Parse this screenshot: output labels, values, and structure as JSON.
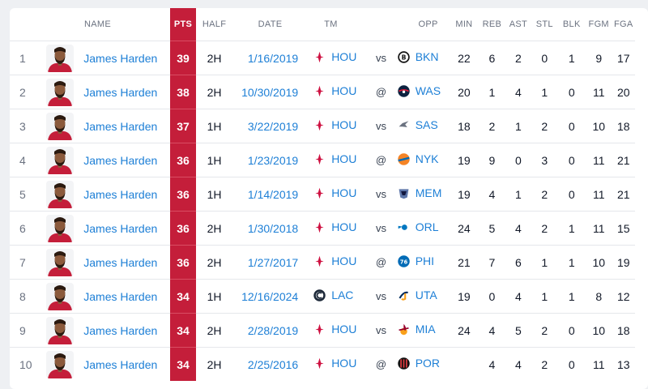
{
  "columns": {
    "name": "NAME",
    "pts": "PTS",
    "half": "HALF",
    "date": "DATE",
    "tm": "TM",
    "opp": "OPP",
    "min": "MIN",
    "reb": "REB",
    "ast": "AST",
    "stl": "STL",
    "blk": "BLK",
    "fgm": "FGM",
    "fga": "FGA"
  },
  "colors": {
    "pts_highlight": "#c41e3a",
    "link": "#1d7fd6"
  },
  "rows": [
    {
      "rank": "1",
      "name": "James Harden",
      "pts": "39",
      "half": "2H",
      "date": "1/16/2019",
      "tm": "HOU",
      "tm_logo": "rockets-logo",
      "loc": "vs",
      "opp": "BKN",
      "opp_logo": "nets-logo",
      "min": "22",
      "reb": "6",
      "ast": "2",
      "stl": "0",
      "blk": "1",
      "fgm": "9",
      "fga": "17"
    },
    {
      "rank": "2",
      "name": "James Harden",
      "pts": "38",
      "half": "2H",
      "date": "10/30/2019",
      "tm": "HOU",
      "tm_logo": "rockets-logo",
      "loc": "@",
      "opp": "WAS",
      "opp_logo": "wizards-logo",
      "min": "20",
      "reb": "1",
      "ast": "4",
      "stl": "1",
      "blk": "0",
      "fgm": "11",
      "fga": "20"
    },
    {
      "rank": "3",
      "name": "James Harden",
      "pts": "37",
      "half": "1H",
      "date": "3/22/2019",
      "tm": "HOU",
      "tm_logo": "rockets-logo",
      "loc": "vs",
      "opp": "SAS",
      "opp_logo": "spurs-logo",
      "min": "18",
      "reb": "2",
      "ast": "1",
      "stl": "2",
      "blk": "0",
      "fgm": "10",
      "fga": "18"
    },
    {
      "rank": "4",
      "name": "James Harden",
      "pts": "36",
      "half": "1H",
      "date": "1/23/2019",
      "tm": "HOU",
      "tm_logo": "rockets-logo",
      "loc": "@",
      "opp": "NYK",
      "opp_logo": "knicks-logo",
      "min": "19",
      "reb": "9",
      "ast": "0",
      "stl": "3",
      "blk": "0",
      "fgm": "11",
      "fga": "21"
    },
    {
      "rank": "5",
      "name": "James Harden",
      "pts": "36",
      "half": "1H",
      "date": "1/14/2019",
      "tm": "HOU",
      "tm_logo": "rockets-logo",
      "loc": "vs",
      "opp": "MEM",
      "opp_logo": "grizzlies-logo",
      "min": "19",
      "reb": "4",
      "ast": "1",
      "stl": "2",
      "blk": "0",
      "fgm": "11",
      "fga": "21"
    },
    {
      "rank": "6",
      "name": "James Harden",
      "pts": "36",
      "half": "2H",
      "date": "1/30/2018",
      "tm": "HOU",
      "tm_logo": "rockets-logo",
      "loc": "vs",
      "opp": "ORL",
      "opp_logo": "magic-logo",
      "min": "24",
      "reb": "5",
      "ast": "4",
      "stl": "2",
      "blk": "1",
      "fgm": "11",
      "fga": "15"
    },
    {
      "rank": "7",
      "name": "James Harden",
      "pts": "36",
      "half": "2H",
      "date": "1/27/2017",
      "tm": "HOU",
      "tm_logo": "rockets-logo",
      "loc": "@",
      "opp": "PHI",
      "opp_logo": "76ers-logo",
      "min": "21",
      "reb": "7",
      "ast": "6",
      "stl": "1",
      "blk": "1",
      "fgm": "10",
      "fga": "19"
    },
    {
      "rank": "8",
      "name": "James Harden",
      "pts": "34",
      "half": "1H",
      "date": "12/16/2024",
      "tm": "LAC",
      "tm_logo": "clippers-logo",
      "loc": "vs",
      "opp": "UTA",
      "opp_logo": "jazz-logo",
      "min": "19",
      "reb": "0",
      "ast": "4",
      "stl": "1",
      "blk": "1",
      "fgm": "8",
      "fga": "12"
    },
    {
      "rank": "9",
      "name": "James Harden",
      "pts": "34",
      "half": "2H",
      "date": "2/28/2019",
      "tm": "HOU",
      "tm_logo": "rockets-logo",
      "loc": "vs",
      "opp": "MIA",
      "opp_logo": "heat-logo",
      "min": "24",
      "reb": "4",
      "ast": "5",
      "stl": "2",
      "blk": "0",
      "fgm": "10",
      "fga": "18"
    },
    {
      "rank": "10",
      "name": "James Harden",
      "pts": "34",
      "half": "2H",
      "date": "2/25/2016",
      "tm": "HOU",
      "tm_logo": "rockets-logo",
      "loc": "@",
      "opp": "POR",
      "opp_logo": "blazers-logo",
      "min": "",
      "reb": "4",
      "ast": "4",
      "stl": "2",
      "blk": "0",
      "fgm": "11",
      "fga": "13"
    }
  ]
}
